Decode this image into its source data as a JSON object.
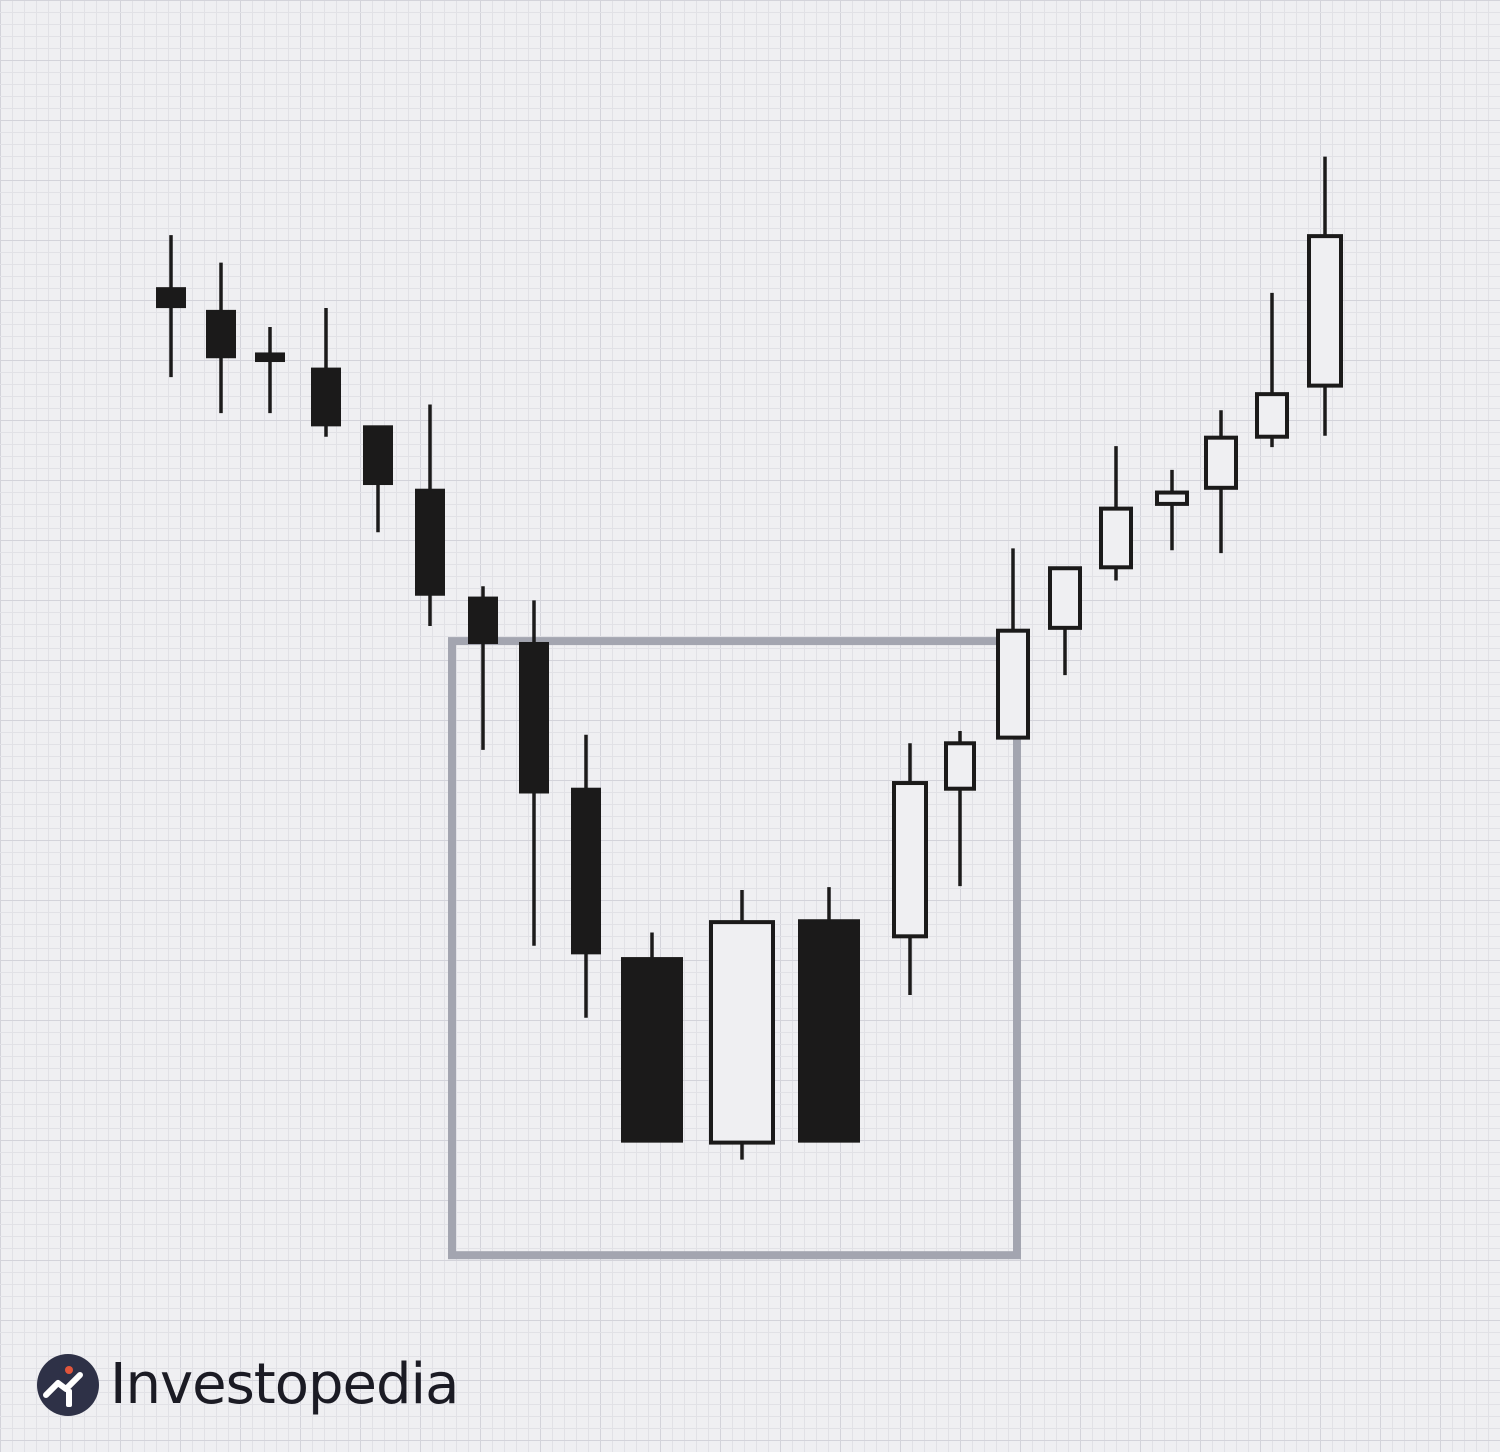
{
  "brand": {
    "name": "Investopedia",
    "icon": "investopedia-logo-icon",
    "mark_color": "#2e3147",
    "dot_color": "#e2553b"
  },
  "colors": {
    "background": "#efeff2",
    "grid_minor": "#e1e1e6",
    "grid_major": "#d3d3da",
    "candle": "#1b1a1a",
    "highlight_box": "#a3a5b0"
  },
  "chart_data": {
    "type": "candlestick",
    "title": "",
    "xlabel": "",
    "ylabel": "",
    "axes_visible": false,
    "grid": true,
    "ylim": [
      0,
      145
    ],
    "candles": [
      {
        "open": 123.0,
        "high": 128.6,
        "low": 113.6,
        "close": 121.0,
        "bearish": true
      },
      {
        "open": 120.6,
        "high": 125.7,
        "low": 109.8,
        "close": 115.7,
        "bearish": true
      },
      {
        "open": 116.1,
        "high": 118.9,
        "low": 109.8,
        "close": 115.3,
        "bearish": true
      },
      {
        "open": 114.5,
        "high": 120.9,
        "low": 107.3,
        "close": 108.5,
        "bearish": true
      },
      {
        "open": 108.4,
        "high": 108.4,
        "low": 97.2,
        "close": 102.3,
        "bearish": true
      },
      {
        "open": 101.7,
        "high": 110.7,
        "low": 87.3,
        "close": 90.6,
        "bearish": true
      },
      {
        "open": 90.3,
        "high": 91.5,
        "low": 74.2,
        "close": 85.5,
        "bearish": true
      },
      {
        "open": 85.5,
        "high": 90.0,
        "low": 53.5,
        "close": 69.7,
        "bearish": true
      },
      {
        "open": 70.1,
        "high": 75.8,
        "low": 45.9,
        "close": 52.7,
        "bearish": true
      },
      {
        "open": 52.2,
        "high": 54.9,
        "low": 32.8,
        "close": 32.8,
        "bearish": true
      },
      {
        "open": 32.7,
        "high": 59.4,
        "low": 30.9,
        "close": 56.0,
        "bearish": false
      },
      {
        "open": 56.2,
        "high": 59.7,
        "low": 32.8,
        "close": 32.8,
        "bearish": true
      },
      {
        "open": 54.5,
        "high": 74.9,
        "low": 48.3,
        "close": 70.7,
        "bearish": false
      },
      {
        "open": 70.1,
        "high": 76.2,
        "low": 59.8,
        "close": 74.9,
        "bearish": false
      },
      {
        "open": 75.5,
        "high": 95.5,
        "low": 75.5,
        "close": 86.8,
        "bearish": false
      },
      {
        "open": 87.1,
        "high": 93.5,
        "low": 82.1,
        "close": 93.4,
        "bearish": false
      },
      {
        "open": 93.5,
        "high": 106.3,
        "low": 92.1,
        "close": 99.7,
        "bearish": false
      },
      {
        "open": 100.2,
        "high": 103.8,
        "low": 95.3,
        "close": 101.4,
        "bearish": false
      },
      {
        "open": 101.9,
        "high": 110.1,
        "low": 95.0,
        "close": 107.2,
        "bearish": false
      },
      {
        "open": 107.3,
        "high": 122.5,
        "low": 106.2,
        "close": 111.8,
        "bearish": false
      },
      {
        "open": 112.7,
        "high": 136.9,
        "low": 107.4,
        "close": 128.5,
        "bearish": false
      }
    ],
    "highlight_region": {
      "from_index": 6,
      "to_index": 15,
      "y_min": 20.8,
      "y_max": 85.7
    }
  }
}
